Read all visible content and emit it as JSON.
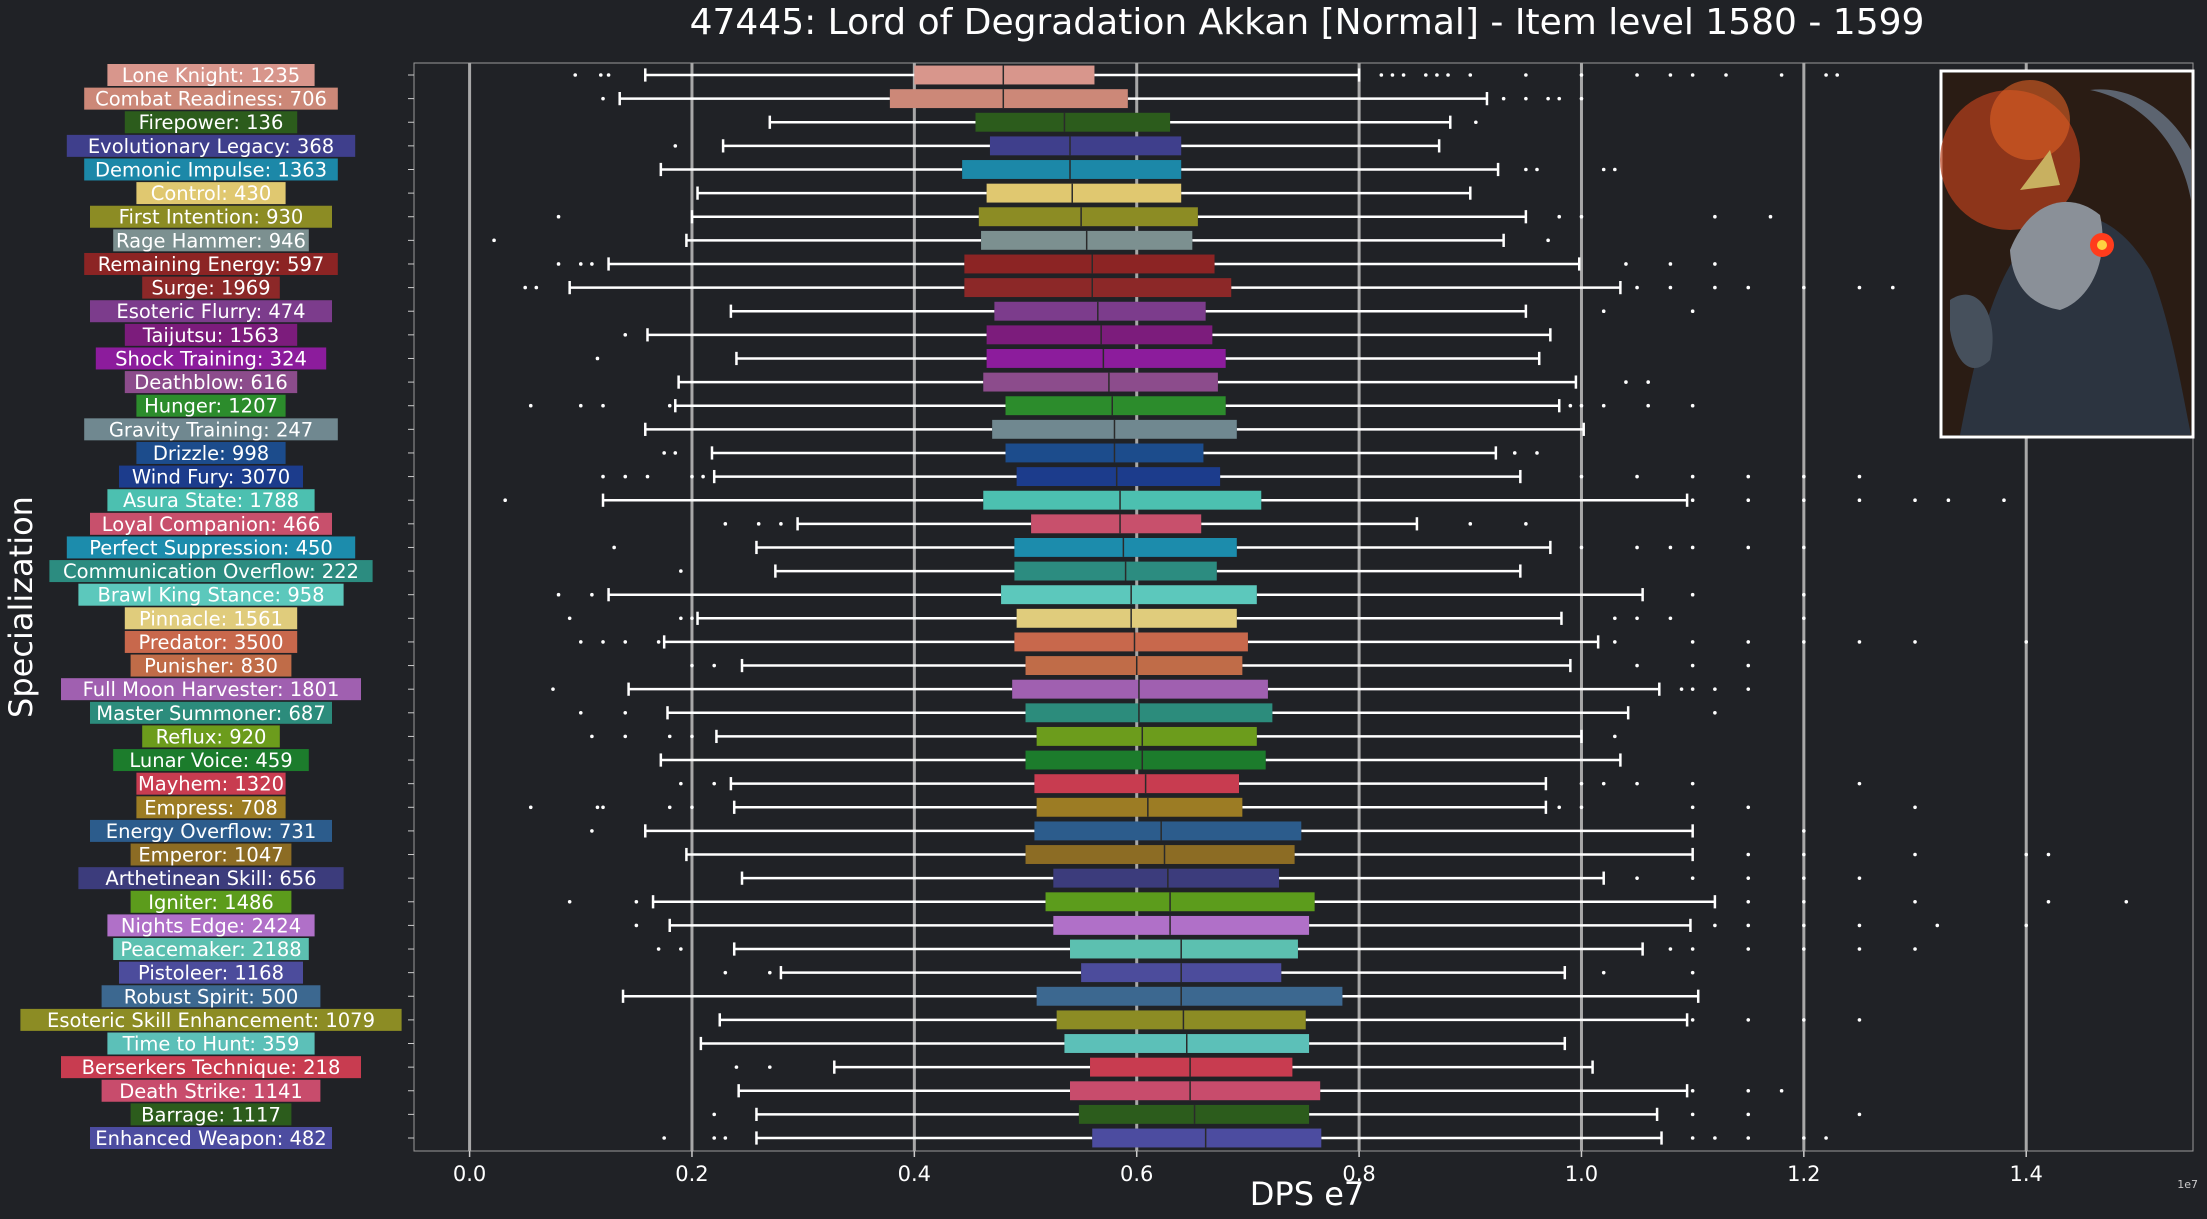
{
  "chart_data": {
    "type": "box",
    "title": "47445: Lord of Degradation Akkan [Normal] - Item level 1580 - 1599",
    "xlabel": "DPS e7",
    "ylabel": "Specialization",
    "x_offset_label": "1e7",
    "xlim": [
      -0.05,
      1.55
    ],
    "xticks": [
      0.0,
      0.2,
      0.4,
      0.6,
      0.8,
      1.0,
      1.2,
      1.4
    ],
    "xtick_labels": [
      "0.0",
      "0.2",
      "0.4",
      "0.6",
      "0.8",
      "1.0",
      "1.2",
      "1.4"
    ],
    "grid": "vertical",
    "legend": "none",
    "has_portrait_image": true,
    "categories": [
      {
        "label": "Lone Knight: 1235",
        "color": "#d8968c",
        "whisker_low": 0.158,
        "q1": 0.4,
        "median": 0.48,
        "q3": 0.562,
        "whisker_high": 0.8,
        "outliers": [
          0.095,
          0.118,
          0.125,
          0.82,
          0.83,
          0.84,
          0.86,
          0.87,
          0.88,
          0.9,
          0.95,
          1.0,
          1.05,
          1.08,
          1.1,
          1.13,
          1.18,
          1.22,
          1.23
        ]
      },
      {
        "label": "Combat Readiness: 706",
        "color": "#cc8878",
        "whisker_low": 0.135,
        "q1": 0.378,
        "median": 0.48,
        "q3": 0.592,
        "whisker_high": 0.915,
        "outliers": [
          0.12,
          0.93,
          0.95,
          0.97,
          0.98,
          1.0
        ]
      },
      {
        "label": "Firepower: 136",
        "color": "#2c5c1c",
        "whisker_low": 0.27,
        "q1": 0.455,
        "median": 0.535,
        "q3": 0.63,
        "whisker_high": 0.882,
        "outliers": [
          0.905
        ]
      },
      {
        "label": "Evolutionary Legacy: 368",
        "color": "#3f3f8c",
        "whisker_low": 0.228,
        "q1": 0.468,
        "median": 0.54,
        "q3": 0.64,
        "whisker_high": 0.872,
        "outliers": [
          0.185
        ]
      },
      {
        "label": "Demonic Impulse: 1363",
        "color": "#1c88a8",
        "whisker_low": 0.172,
        "q1": 0.443,
        "median": 0.54,
        "q3": 0.64,
        "whisker_high": 0.925,
        "outliers": [
          0.95,
          0.96,
          1.02,
          1.03
        ]
      },
      {
        "label": "Control: 430",
        "color": "#e0c870",
        "whisker_low": 0.205,
        "q1": 0.465,
        "median": 0.542,
        "q3": 0.64,
        "whisker_high": 0.9,
        "outliers": []
      },
      {
        "label": "First Intention: 930",
        "color": "#8c8c24",
        "whisker_low": 0.2,
        "q1": 0.458,
        "median": 0.55,
        "q3": 0.655,
        "whisker_high": 0.95,
        "outliers": [
          0.08,
          0.98,
          1.0,
          1.12,
          1.17
        ]
      },
      {
        "label": "Rage Hammer: 946",
        "color": "#7c9090",
        "whisker_low": 0.195,
        "q1": 0.46,
        "median": 0.555,
        "q3": 0.65,
        "whisker_high": 0.93,
        "outliers": [
          0.022,
          0.97
        ]
      },
      {
        "label": "Remaining Energy: 597",
        "color": "#8c2424",
        "whisker_low": 0.125,
        "q1": 0.445,
        "median": 0.56,
        "q3": 0.67,
        "whisker_high": 0.998,
        "outliers": [
          0.08,
          0.1,
          0.11,
          1.04,
          1.08,
          1.12
        ]
      },
      {
        "label": "Surge: 1969",
        "color": "#8c2828",
        "whisker_low": 0.09,
        "q1": 0.445,
        "median": 0.56,
        "q3": 0.685,
        "whisker_high": 1.035,
        "outliers": [
          0.05,
          0.06,
          1.05,
          1.08,
          1.12,
          1.15,
          1.2,
          1.25,
          1.28
        ]
      },
      {
        "label": "Esoteric Flurry: 474",
        "color": "#7c3c8c",
        "whisker_low": 0.235,
        "q1": 0.472,
        "median": 0.565,
        "q3": 0.662,
        "whisker_high": 0.95,
        "outliers": [
          1.02,
          1.1
        ]
      },
      {
        "label": "Taijutsu: 1563",
        "color": "#7c1c7c",
        "whisker_low": 0.16,
        "q1": 0.465,
        "median": 0.568,
        "q3": 0.668,
        "whisker_high": 0.972,
        "outliers": [
          0.14
        ]
      },
      {
        "label": "Shock Training: 324",
        "color": "#8c1c9c",
        "whisker_low": 0.24,
        "q1": 0.465,
        "median": 0.57,
        "q3": 0.68,
        "whisker_high": 0.962,
        "outliers": [
          0.115
        ]
      },
      {
        "label": "Deathblow: 616",
        "color": "#8c4c8c",
        "whisker_low": 0.188,
        "q1": 0.462,
        "median": 0.575,
        "q3": 0.673,
        "whisker_high": 0.995,
        "outliers": [
          1.04,
          1.06
        ]
      },
      {
        "label": "Hunger: 1207",
        "color": "#2c8c2c",
        "whisker_low": 0.185,
        "q1": 0.482,
        "median": 0.578,
        "q3": 0.68,
        "whisker_high": 0.98,
        "outliers": [
          0.055,
          0.1,
          0.12,
          0.18,
          0.99,
          1.0,
          1.02,
          1.06,
          1.1
        ]
      },
      {
        "label": "Gravity Training: 247",
        "color": "#708890",
        "whisker_low": 0.158,
        "q1": 0.47,
        "median": 0.58,
        "q3": 0.69,
        "whisker_high": 1.002,
        "outliers": []
      },
      {
        "label": "Drizzle: 998",
        "color": "#1c4c8c",
        "whisker_low": 0.218,
        "q1": 0.482,
        "median": 0.58,
        "q3": 0.66,
        "whisker_high": 0.923,
        "outliers": [
          0.175,
          0.185,
          0.94,
          0.96
        ]
      },
      {
        "label": "Wind Fury: 3070",
        "color": "#1c3c8c",
        "whisker_low": 0.22,
        "q1": 0.492,
        "median": 0.582,
        "q3": 0.675,
        "whisker_high": 0.945,
        "outliers": [
          0.12,
          0.14,
          0.16,
          0.2,
          0.21,
          1.0,
          1.05,
          1.1,
          1.15,
          1.2,
          1.25
        ]
      },
      {
        "label": "Asura State: 1788",
        "color": "#4cc0b0",
        "whisker_low": 0.12,
        "q1": 0.462,
        "median": 0.585,
        "q3": 0.712,
        "whisker_high": 1.095,
        "outliers": [
          0.032,
          1.1,
          1.15,
          1.2,
          1.25,
          1.3,
          1.33,
          1.38
        ]
      },
      {
        "label": "Loyal Companion: 466",
        "color": "#c8506c",
        "whisker_low": 0.295,
        "q1": 0.505,
        "median": 0.585,
        "q3": 0.658,
        "whisker_high": 0.852,
        "outliers": [
          0.23,
          0.26,
          0.28,
          0.9,
          0.95
        ]
      },
      {
        "label": "Perfect Suppression: 450",
        "color": "#1c8cac",
        "whisker_low": 0.258,
        "q1": 0.49,
        "median": 0.588,
        "q3": 0.69,
        "whisker_high": 0.972,
        "outliers": [
          0.13,
          1.0,
          1.05,
          1.08,
          1.1,
          1.15,
          1.2
        ]
      },
      {
        "label": "Communication Overflow: 222",
        "color": "#2c8c80",
        "whisker_low": 0.275,
        "q1": 0.49,
        "median": 0.59,
        "q3": 0.672,
        "whisker_high": 0.945,
        "outliers": [
          0.19
        ]
      },
      {
        "label": "Brawl King Stance: 958",
        "color": "#5cc8bc",
        "whisker_low": 0.125,
        "q1": 0.478,
        "median": 0.595,
        "q3": 0.708,
        "whisker_high": 1.055,
        "outliers": [
          0.08,
          0.11,
          1.1,
          1.2
        ]
      },
      {
        "label": "Pinnacle: 1561",
        "color": "#e0cc7c",
        "whisker_low": 0.205,
        "q1": 0.492,
        "median": 0.595,
        "q3": 0.69,
        "whisker_high": 0.982,
        "outliers": [
          0.09,
          0.19,
          0.2,
          1.03,
          1.05,
          1.08,
          1.2
        ]
      },
      {
        "label": "Predator: 3500",
        "color": "#c8684c",
        "whisker_low": 0.175,
        "q1": 0.49,
        "median": 0.598,
        "q3": 0.7,
        "whisker_high": 1.015,
        "outliers": [
          0.1,
          0.12,
          0.14,
          0.17,
          1.03,
          1.1,
          1.15,
          1.2,
          1.25,
          1.3,
          1.4
        ]
      },
      {
        "label": "Punisher: 830",
        "color": "#c06c48",
        "whisker_low": 0.245,
        "q1": 0.5,
        "median": 0.6,
        "q3": 0.695,
        "whisker_high": 0.99,
        "outliers": [
          0.2,
          0.22,
          1.05,
          1.1,
          1.15
        ]
      },
      {
        "label": "Full Moon Harvester: 1801",
        "color": "#a060b0",
        "whisker_low": 0.143,
        "q1": 0.488,
        "median": 0.602,
        "q3": 0.718,
        "whisker_high": 1.07,
        "outliers": [
          0.075,
          1.09,
          1.1,
          1.12,
          1.15
        ]
      },
      {
        "label": "Master Summoner: 687",
        "color": "#2c8c7c",
        "whisker_low": 0.178,
        "q1": 0.5,
        "median": 0.602,
        "q3": 0.722,
        "whisker_high": 1.042,
        "outliers": [
          0.1,
          0.14,
          1.12
        ]
      },
      {
        "label": "Reflux: 920",
        "color": "#6c9c1c",
        "whisker_low": 0.222,
        "q1": 0.51,
        "median": 0.605,
        "q3": 0.708,
        "whisker_high": 1.0,
        "outliers": [
          0.11,
          0.14,
          0.18,
          0.2,
          1.03
        ]
      },
      {
        "label": "Lunar Voice: 459",
        "color": "#1c7c2c",
        "whisker_low": 0.172,
        "q1": 0.5,
        "median": 0.605,
        "q3": 0.716,
        "whisker_high": 1.035,
        "outliers": []
      },
      {
        "label": "Mayhem: 1320",
        "color": "#c83c50",
        "whisker_low": 0.235,
        "q1": 0.508,
        "median": 0.608,
        "q3": 0.692,
        "whisker_high": 0.968,
        "outliers": [
          0.19,
          0.22,
          1.0,
          1.02,
          1.05,
          1.1,
          1.25
        ]
      },
      {
        "label": "Empress: 708",
        "color": "#9c7c24",
        "whisker_low": 0.238,
        "q1": 0.51,
        "median": 0.61,
        "q3": 0.695,
        "whisker_high": 0.968,
        "outliers": [
          0.055,
          0.115,
          0.12,
          0.18,
          0.2,
          0.98,
          1.0,
          1.1,
          1.15,
          1.3
        ]
      },
      {
        "label": "Energy Overflow: 731",
        "color": "#2c5c8c",
        "whisker_low": 0.158,
        "q1": 0.508,
        "median": 0.622,
        "q3": 0.748,
        "whisker_high": 1.1,
        "outliers": [
          0.11,
          1.2
        ]
      },
      {
        "label": "Emperor: 1047",
        "color": "#8c6c24",
        "whisker_low": 0.195,
        "q1": 0.5,
        "median": 0.625,
        "q3": 0.742,
        "whisker_high": 1.1,
        "outliers": [
          1.15,
          1.2,
          1.3,
          1.4,
          1.42
        ]
      },
      {
        "label": "Arthetinean Skill: 656",
        "color": "#3c3c7c",
        "whisker_low": 0.245,
        "q1": 0.525,
        "median": 0.628,
        "q3": 0.728,
        "whisker_high": 1.02,
        "outliers": [
          1.05,
          1.1,
          1.15,
          1.2,
          1.25
        ]
      },
      {
        "label": "Igniter: 1486",
        "color": "#5c9c1c",
        "whisker_low": 0.165,
        "q1": 0.518,
        "median": 0.63,
        "q3": 0.76,
        "whisker_high": 1.12,
        "outliers": [
          0.09,
          0.15,
          1.15,
          1.2,
          1.3,
          1.42,
          1.49
        ]
      },
      {
        "label": "Nights Edge: 2424",
        "color": "#b070c8",
        "whisker_low": 0.18,
        "q1": 0.525,
        "median": 0.63,
        "q3": 0.755,
        "whisker_high": 1.098,
        "outliers": [
          0.15,
          1.12,
          1.15,
          1.2,
          1.25,
          1.32,
          1.4
        ]
      },
      {
        "label": "Peacemaker: 2188",
        "color": "#5cc0b0",
        "whisker_low": 0.238,
        "q1": 0.54,
        "median": 0.64,
        "q3": 0.745,
        "whisker_high": 1.055,
        "outliers": [
          0.17,
          0.19,
          1.08,
          1.1,
          1.15,
          1.2,
          1.25,
          1.3
        ]
      },
      {
        "label": "Pistoleer: 1168",
        "color": "#4c4c9c",
        "whisker_low": 0.28,
        "q1": 0.55,
        "median": 0.64,
        "q3": 0.73,
        "whisker_high": 0.985,
        "outliers": [
          0.23,
          0.27,
          1.02,
          1.1
        ]
      },
      {
        "label": "Robust Spirit: 500",
        "color": "#3c6890",
        "whisker_low": 0.138,
        "q1": 0.51,
        "median": 0.64,
        "q3": 0.785,
        "whisker_high": 1.105,
        "outliers": []
      },
      {
        "label": "Esoteric Skill Enhancement: 1079",
        "color": "#8c8c24",
        "whisker_low": 0.225,
        "q1": 0.528,
        "median": 0.642,
        "q3": 0.752,
        "whisker_high": 1.095,
        "outliers": [
          1.1,
          1.15,
          1.2,
          1.25
        ]
      },
      {
        "label": "Time to Hunt: 359",
        "color": "#5cc0b8",
        "whisker_low": 0.208,
        "q1": 0.535,
        "median": 0.645,
        "q3": 0.755,
        "whisker_high": 0.985,
        "outliers": []
      },
      {
        "label": "Berserkers Technique: 218",
        "color": "#c83c50",
        "whisker_low": 0.328,
        "q1": 0.558,
        "median": 0.648,
        "q3": 0.74,
        "whisker_high": 1.01,
        "outliers": [
          0.24,
          0.27
        ]
      },
      {
        "label": "Death Strike: 1141",
        "color": "#c84c6c",
        "whisker_low": 0.242,
        "q1": 0.54,
        "median": 0.648,
        "q3": 0.765,
        "whisker_high": 1.095,
        "outliers": [
          1.1,
          1.15,
          1.18
        ]
      },
      {
        "label": "Barrage: 1117",
        "color": "#2c5c1c",
        "whisker_low": 0.258,
        "q1": 0.548,
        "median": 0.652,
        "q3": 0.755,
        "whisker_high": 1.068,
        "outliers": [
          0.22,
          1.1,
          1.15,
          1.25
        ]
      },
      {
        "label": "Enhanced Weapon: 482",
        "color": "#4c4ca0",
        "whisker_low": 0.258,
        "q1": 0.56,
        "median": 0.662,
        "q3": 0.766,
        "whisker_high": 1.072,
        "outliers": [
          0.175,
          0.22,
          0.23,
          1.1,
          1.12,
          1.15,
          1.2,
          1.22
        ]
      }
    ]
  }
}
